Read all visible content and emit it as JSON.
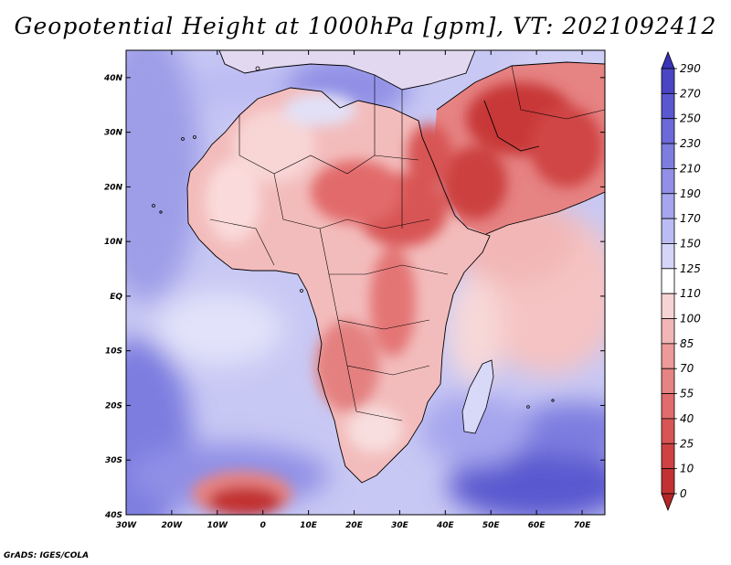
{
  "title": "Geopotential Height at 1000hPa [gpm], VT: 2021092412",
  "credit": "GrADS: IGES/COLA",
  "map": {
    "region": "Africa and Middle East",
    "lon_labels": [
      "30W",
      "20W",
      "10W",
      "0",
      "10E",
      "20E",
      "30E",
      "40E",
      "50E",
      "60E",
      "70E"
    ],
    "lat_labels": [
      "40N",
      "30N",
      "20N",
      "10N",
      "EQ",
      "10S",
      "20S",
      "30S",
      "40S"
    ],
    "lon_range": [
      -30,
      75
    ],
    "lat_range": [
      -40,
      45
    ]
  },
  "colorbar": {
    "labels": [
      "290",
      "270",
      "250",
      "230",
      "210",
      "190",
      "170",
      "150",
      "125",
      "110",
      "100",
      "85",
      "70",
      "55",
      "40",
      "25",
      "10",
      "0"
    ],
    "colors": [
      "#3a34b8",
      "#4a45c4",
      "#5a58cf",
      "#6b6ad8",
      "#7d7de0",
      "#9190e6",
      "#a6a6ee",
      "#bcbcf4",
      "#d4d5f8",
      "#ffffff",
      "#f8d3d3",
      "#f2b6b6",
      "#ec9a9a",
      "#e68383",
      "#e06c6c",
      "#d85555",
      "#d04242",
      "#c23232",
      "#b42626"
    ]
  },
  "colors": {
    "ocean_base": "#bcbcf4",
    "ocean_deep": "#5a58cf",
    "land_base": "#f5c3c3",
    "land_hot": "#d85555",
    "low_center": "#b42626"
  }
}
